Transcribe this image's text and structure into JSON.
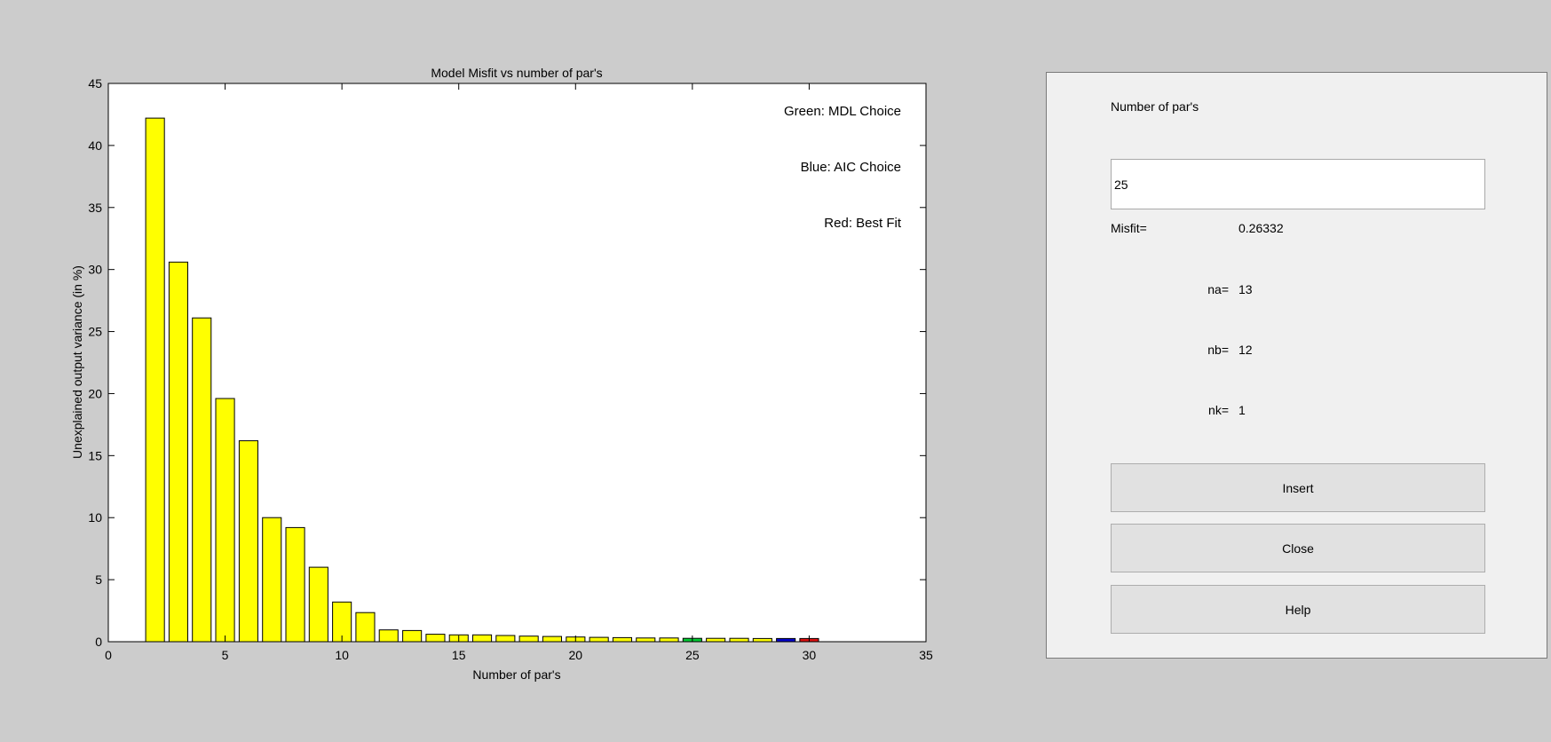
{
  "chart_data": {
    "type": "bar",
    "title": "Model Misfit vs number of par's",
    "xlabel": "Number of par's",
    "ylabel": "Unexplained output variance (in %)",
    "xlim": [
      0,
      35
    ],
    "ylim": [
      0,
      45
    ],
    "xticks": [
      0,
      5,
      10,
      15,
      20,
      25,
      30,
      35
    ],
    "yticks": [
      0,
      5,
      10,
      15,
      20,
      25,
      30,
      35,
      40,
      45
    ],
    "x": [
      2,
      3,
      4,
      5,
      6,
      7,
      8,
      9,
      10,
      11,
      12,
      13,
      14,
      15,
      16,
      17,
      18,
      19,
      20,
      21,
      22,
      23,
      24,
      25,
      26,
      27,
      28,
      29,
      30
    ],
    "values": [
      42.2,
      30.6,
      26.1,
      19.6,
      16.2,
      10.0,
      9.2,
      6.0,
      3.2,
      2.35,
      0.95,
      0.9,
      0.6,
      0.55,
      0.55,
      0.5,
      0.45,
      0.42,
      0.38,
      0.35,
      0.33,
      0.3,
      0.3,
      0.27,
      0.27,
      0.27,
      0.26,
      0.26,
      0.26
    ],
    "bar_color": "#ffff00",
    "highlights": [
      {
        "x": 25,
        "color": "#00cc33"
      },
      {
        "x": 29,
        "color": "#0000cc"
      },
      {
        "x": 30,
        "color": "#dd1111"
      }
    ],
    "annotations": [
      "Green: MDL Choice",
      "Blue: AIC Choice",
      "Red: Best Fit"
    ],
    "grid": false
  },
  "panel": {
    "number_label": "Number of par's",
    "number_value": "25",
    "misfit_label": "Misfit=",
    "misfit_value": "0.26332",
    "na_label": "na=",
    "na_value": "13",
    "nb_label": "nb=",
    "nb_value": "12",
    "nk_label": "nk=",
    "nk_value": "1",
    "insert_label": "Insert",
    "close_label": "Close",
    "help_label": "Help"
  }
}
